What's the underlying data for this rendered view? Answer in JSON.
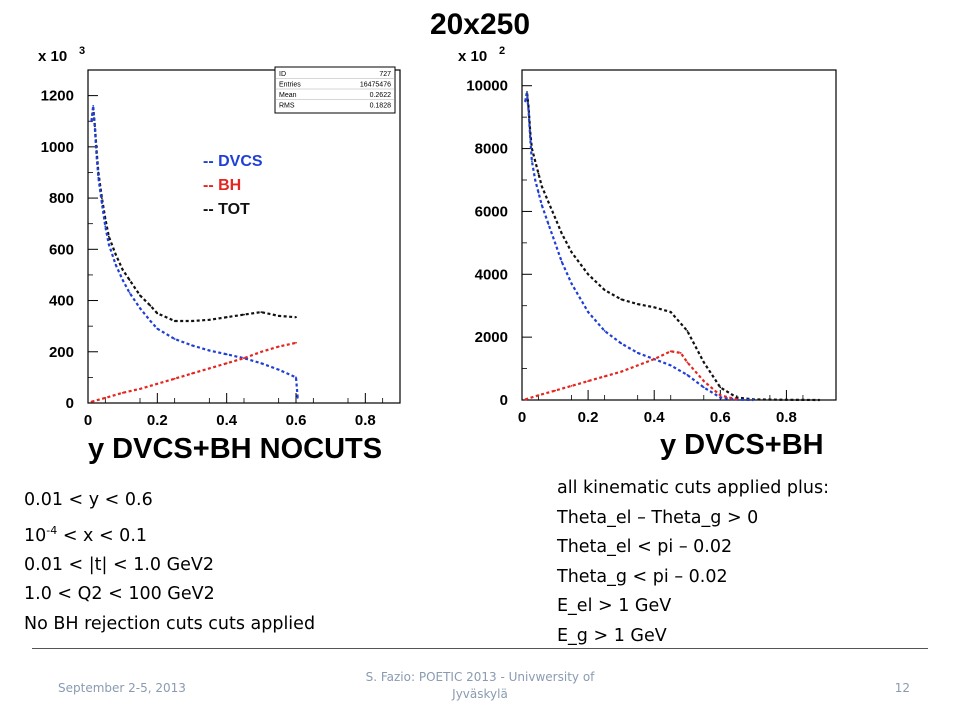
{
  "slide": {
    "title": "20x250"
  },
  "legend": {
    "dvcs": {
      "label": "-- DVCS",
      "color": "#1f3fd6"
    },
    "bh": {
      "label": "-- BH",
      "color": "#e52620"
    },
    "tot": {
      "label": "-- TOT",
      "color": "#111111"
    }
  },
  "left_cuts": {
    "line1": "0.01 < y < 0.6",
    "line2_base": "10",
    "line2_exp": "-4",
    "line2_rest": " < x < 0.1",
    "line3": "0.01 < |t| < 1.0 GeV2",
    "line4": "1.0 < Q2 < 100 GeV2",
    "line5": "No BH rejection cuts cuts applied"
  },
  "right_cuts": {
    "line1": "all kinematic cuts applied plus:",
    "line2": "Theta_el – Theta_g > 0",
    "line3": "Theta_el < pi – 0.02",
    "line4": "Theta_g < pi – 0.02",
    "line5": "E_el > 1 GeV",
    "line6": "E_g > 1 GeV"
  },
  "footer": {
    "date": "September 2-5, 2013",
    "source": "S. Fazio: POETIC 2013 - Univwersity of Jyväskylä",
    "page": "12"
  },
  "chart_data": [
    {
      "type": "line",
      "title": "",
      "xlabel": "y DVCS+BH NOCUTS",
      "ylabel": "",
      "y_multiplier_label": "x 10",
      "y_multiplier_exp": "3",
      "xlim": [
        0,
        0.9
      ],
      "ylim": [
        0,
        1300
      ],
      "x_ticks": [
        0,
        0.2,
        0.4,
        0.6,
        0.8
      ],
      "x_tick_labels": [
        "0",
        "0.2",
        "0.4",
        "0.6",
        "0.8"
      ],
      "y_ticks": [
        0,
        200,
        400,
        600,
        800,
        1000,
        1200
      ],
      "y_tick_labels": [
        "0",
        "200",
        "400",
        "600",
        "800",
        "1000",
        "1200"
      ],
      "stats_box": {
        "rows": [
          {
            "label": "ID",
            "value": "727"
          },
          {
            "label": "Entries",
            "value": "16475476"
          },
          {
            "label": "Mean",
            "value": "0.2622"
          },
          {
            "label": "RMS",
            "value": "0.1828"
          }
        ]
      },
      "series": [
        {
          "name": "TOT",
          "color": "#111111",
          "x": [
            0.01,
            0.015,
            0.02,
            0.025,
            0.03,
            0.04,
            0.05,
            0.06,
            0.08,
            0.1,
            0.12,
            0.15,
            0.18,
            0.2,
            0.25,
            0.3,
            0.35,
            0.4,
            0.45,
            0.5,
            0.55,
            0.6
          ],
          "y": [
            1100,
            1150,
            1080,
            980,
            900,
            800,
            720,
            650,
            580,
            520,
            480,
            420,
            380,
            350,
            320,
            320,
            325,
            335,
            345,
            355,
            340,
            335
          ]
        },
        {
          "name": "DVCS",
          "color": "#1f3fd6",
          "x": [
            0.01,
            0.015,
            0.02,
            0.025,
            0.03,
            0.04,
            0.05,
            0.06,
            0.08,
            0.1,
            0.12,
            0.15,
            0.18,
            0.2,
            0.25,
            0.3,
            0.35,
            0.4,
            0.45,
            0.5,
            0.55,
            0.6,
            0.605
          ],
          "y": [
            1100,
            1160,
            1070,
            960,
            880,
            780,
            690,
            620,
            540,
            480,
            430,
            370,
            320,
            290,
            250,
            225,
            205,
            190,
            175,
            155,
            130,
            100,
            20
          ]
        },
        {
          "name": "BH",
          "color": "#e52620",
          "x": [
            0.01,
            0.05,
            0.1,
            0.15,
            0.2,
            0.25,
            0.3,
            0.35,
            0.4,
            0.45,
            0.5,
            0.55,
            0.6
          ],
          "y": [
            5,
            20,
            40,
            55,
            75,
            95,
            115,
            135,
            155,
            175,
            200,
            220,
            235
          ]
        }
      ]
    },
    {
      "type": "line",
      "title": "",
      "xlabel": "y DVCS+BH",
      "ylabel": "",
      "y_multiplier_label": "x 10",
      "y_multiplier_exp": "2",
      "xlim": [
        0,
        0.95
      ],
      "ylim": [
        0,
        10500
      ],
      "x_ticks": [
        0,
        0.2,
        0.4,
        0.6,
        0.8
      ],
      "x_tick_labels": [
        "0",
        "0.2",
        "0.4",
        "0.6",
        "0.8"
      ],
      "y_ticks": [
        0,
        2000,
        4000,
        6000,
        8000,
        10000
      ],
      "y_tick_labels": [
        "0",
        "2000",
        "4000",
        "6000",
        "8000",
        "10000"
      ],
      "series": [
        {
          "name": "TOT",
          "color": "#111111",
          "x": [
            0.01,
            0.015,
            0.02,
            0.025,
            0.03,
            0.04,
            0.05,
            0.06,
            0.08,
            0.1,
            0.12,
            0.15,
            0.2,
            0.25,
            0.3,
            0.35,
            0.4,
            0.45,
            0.5,
            0.55,
            0.6,
            0.65,
            0.7,
            0.8,
            0.9
          ],
          "y": [
            9500,
            9800,
            9300,
            8500,
            8000,
            7600,
            7200,
            6800,
            6300,
            5800,
            5300,
            4700,
            4000,
            3500,
            3200,
            3050,
            2950,
            2800,
            2200,
            1200,
            400,
            80,
            20,
            5,
            0
          ]
        },
        {
          "name": "DVCS",
          "color": "#1f3fd6",
          "x": [
            0.01,
            0.015,
            0.02,
            0.025,
            0.03,
            0.04,
            0.05,
            0.06,
            0.08,
            0.1,
            0.12,
            0.15,
            0.2,
            0.25,
            0.3,
            0.35,
            0.4,
            0.45,
            0.5,
            0.55,
            0.6,
            0.65,
            0.7
          ],
          "y": [
            9500,
            9750,
            9200,
            8300,
            7600,
            7000,
            6600,
            6200,
            5600,
            5000,
            4400,
            3700,
            2800,
            2200,
            1800,
            1500,
            1300,
            1100,
            800,
            400,
            80,
            10,
            0
          ]
        },
        {
          "name": "BH",
          "color": "#e52620",
          "x": [
            0.01,
            0.05,
            0.1,
            0.15,
            0.2,
            0.25,
            0.3,
            0.35,
            0.4,
            0.45,
            0.48,
            0.5,
            0.55,
            0.6,
            0.65
          ],
          "y": [
            20,
            150,
            300,
            450,
            600,
            750,
            900,
            1100,
            1300,
            1550,
            1500,
            1200,
            600,
            150,
            20
          ]
        }
      ]
    }
  ]
}
